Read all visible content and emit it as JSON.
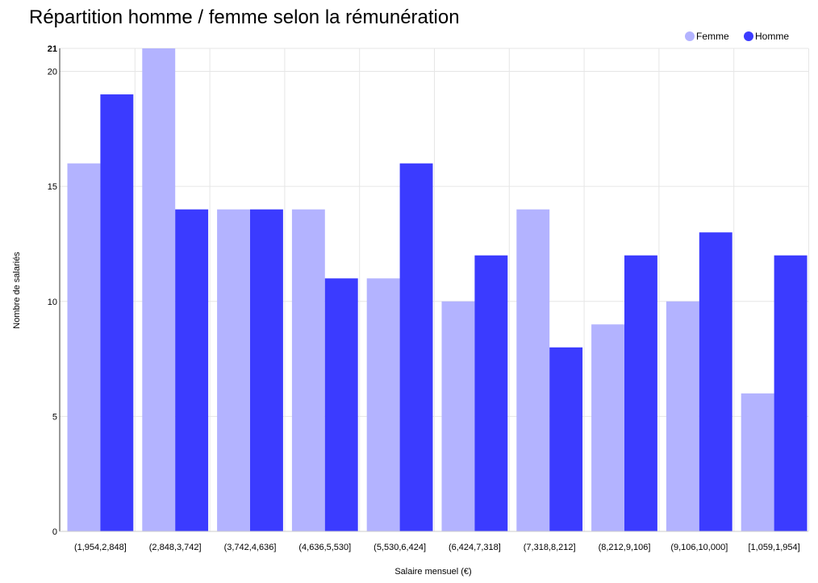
{
  "chart_data": {
    "type": "bar",
    "title": "Répartition homme / femme selon la rémunération",
    "xlabel": "Salaire mensuel (€)",
    "ylabel": "Nombre de salariés",
    "ylim": [
      0,
      21
    ],
    "yticks": [
      0,
      5,
      10,
      15,
      20,
      21
    ],
    "grid": true,
    "legend_position": "top-right",
    "categories": [
      "(1,954,2,848]",
      "(2,848,3,742]",
      "(3,742,4,636]",
      "(4,636,5,530]",
      "(5,530,6,424]",
      "(6,424,7,318]",
      "(7,318,8,212]",
      "(8,212,9,106]",
      "(9,106,10,000]",
      "[1,059,1,954]"
    ],
    "series": [
      {
        "name": "Femme",
        "color": "#b3b3ff",
        "values": [
          16,
          21,
          14,
          14,
          11,
          10,
          14,
          9,
          10,
          6
        ]
      },
      {
        "name": "Homme",
        "color": "#3b3bff",
        "values": [
          19,
          14,
          14,
          11,
          16,
          12,
          8,
          12,
          13,
          12
        ]
      }
    ]
  }
}
